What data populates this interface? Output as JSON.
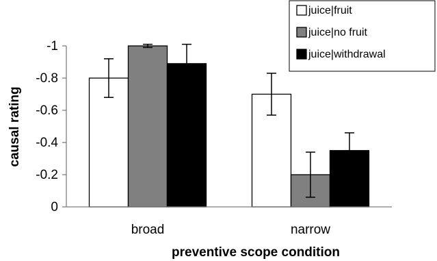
{
  "chart_data": {
    "type": "bar",
    "categories": [
      "broad",
      "narrow"
    ],
    "series": [
      {
        "name": "juice|fruit",
        "color": "#ffffff",
        "values": [
          -0.8,
          -0.7
        ],
        "errors": [
          0.12,
          0.13
        ]
      },
      {
        "name": "juice|no fruit",
        "color": "#808080",
        "values": [
          -1.0,
          -0.2
        ],
        "errors": [
          0.01,
          0.14
        ]
      },
      {
        "name": "juice|withdrawal",
        "color": "#000000",
        "values": [
          -0.89,
          -0.35
        ],
        "errors": [
          0.12,
          0.11
        ]
      }
    ],
    "yticks": [
      "-1",
      "-0.8",
      "-0.6",
      "-0.4",
      "-0.2",
      "0"
    ],
    "ylim": [
      0,
      -1
    ],
    "ylabel": "causal rating",
    "xlabel": "preventive scope condition",
    "legend_position": "top-right",
    "grid": false,
    "bar_outline_color": "#000000"
  }
}
